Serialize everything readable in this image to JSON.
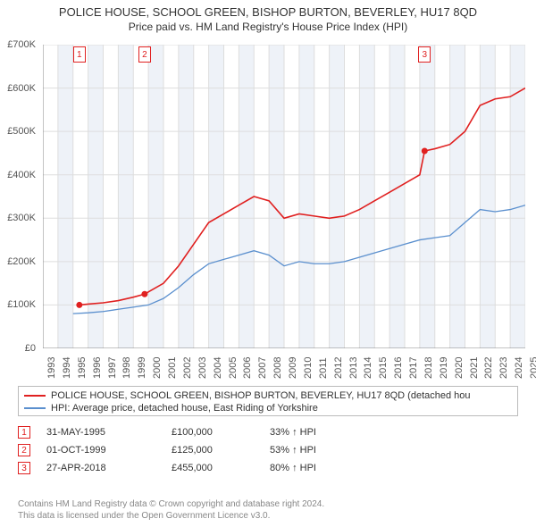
{
  "title": "POLICE HOUSE, SCHOOL GREEN, BISHOP BURTON, BEVERLEY, HU17 8QD",
  "subtitle": "Price paid vs. HM Land Registry's House Price Index (HPI)",
  "chart": {
    "type": "line",
    "background_color": "#ffffff",
    "alt_band_color": "#eef2f8",
    "grid_color": "#dddddd",
    "axis_color": "#888888",
    "ylim": [
      0,
      700000
    ],
    "ytick_step": 100000,
    "ytick_labels": [
      "£0",
      "£100K",
      "£200K",
      "£300K",
      "£400K",
      "£500K",
      "£600K",
      "£700K"
    ],
    "x_years": [
      1993,
      1994,
      1995,
      1996,
      1997,
      1998,
      1999,
      2000,
      2001,
      2002,
      2003,
      2004,
      2005,
      2006,
      2007,
      2008,
      2009,
      2010,
      2011,
      2012,
      2013,
      2014,
      2015,
      2016,
      2017,
      2018,
      2019,
      2020,
      2021,
      2022,
      2023,
      2024,
      2025
    ],
    "series": [
      {
        "name": "price_paid",
        "color": "#e02020",
        "line_width": 1.6,
        "points": [
          [
            1995.42,
            100000
          ],
          [
            1996,
            102000
          ],
          [
            1997,
            105000
          ],
          [
            1998,
            110000
          ],
          [
            1999,
            118000
          ],
          [
            1999.75,
            125000
          ],
          [
            2000,
            130000
          ],
          [
            2001,
            150000
          ],
          [
            2002,
            190000
          ],
          [
            2003,
            240000
          ],
          [
            2004,
            290000
          ],
          [
            2005,
            310000
          ],
          [
            2006,
            330000
          ],
          [
            2007,
            350000
          ],
          [
            2008,
            340000
          ],
          [
            2009,
            300000
          ],
          [
            2010,
            310000
          ],
          [
            2011,
            305000
          ],
          [
            2012,
            300000
          ],
          [
            2013,
            305000
          ],
          [
            2014,
            320000
          ],
          [
            2015,
            340000
          ],
          [
            2016,
            360000
          ],
          [
            2017,
            380000
          ],
          [
            2018,
            400000
          ],
          [
            2018.32,
            455000
          ],
          [
            2019,
            460000
          ],
          [
            2020,
            470000
          ],
          [
            2021,
            500000
          ],
          [
            2022,
            560000
          ],
          [
            2023,
            575000
          ],
          [
            2024,
            580000
          ],
          [
            2025,
            600000
          ]
        ],
        "marker_indices": [
          0,
          5,
          25
        ],
        "marker_fill": "#e02020"
      },
      {
        "name": "hpi",
        "color": "#5a8fce",
        "line_width": 1.3,
        "points": [
          [
            1995,
            80000
          ],
          [
            1996,
            82000
          ],
          [
            1997,
            85000
          ],
          [
            1998,
            90000
          ],
          [
            1999,
            95000
          ],
          [
            2000,
            100000
          ],
          [
            2001,
            115000
          ],
          [
            2002,
            140000
          ],
          [
            2003,
            170000
          ],
          [
            2004,
            195000
          ],
          [
            2005,
            205000
          ],
          [
            2006,
            215000
          ],
          [
            2007,
            225000
          ],
          [
            2008,
            215000
          ],
          [
            2009,
            190000
          ],
          [
            2010,
            200000
          ],
          [
            2011,
            195000
          ],
          [
            2012,
            195000
          ],
          [
            2013,
            200000
          ],
          [
            2014,
            210000
          ],
          [
            2015,
            220000
          ],
          [
            2016,
            230000
          ],
          [
            2017,
            240000
          ],
          [
            2018,
            250000
          ],
          [
            2019,
            255000
          ],
          [
            2020,
            260000
          ],
          [
            2021,
            290000
          ],
          [
            2022,
            320000
          ],
          [
            2023,
            315000
          ],
          [
            2024,
            320000
          ],
          [
            2025,
            330000
          ]
        ]
      }
    ],
    "flags": [
      {
        "n": "1",
        "year": 1995.42,
        "color": "#e02020"
      },
      {
        "n": "2",
        "year": 1999.75,
        "color": "#e02020"
      },
      {
        "n": "3",
        "year": 2018.32,
        "color": "#e02020"
      }
    ]
  },
  "legend": [
    {
      "color": "#e02020",
      "label": "POLICE HOUSE, SCHOOL GREEN, BISHOP BURTON, BEVERLEY, HU17 8QD (detached hou"
    },
    {
      "color": "#5a8fce",
      "label": "HPI: Average price, detached house, East Riding of Yorkshire"
    }
  ],
  "markers": [
    {
      "n": "1",
      "color": "#e02020",
      "date": "31-MAY-1995",
      "price": "£100,000",
      "pct": "33% ↑ HPI"
    },
    {
      "n": "2",
      "color": "#e02020",
      "date": "01-OCT-1999",
      "price": "£125,000",
      "pct": "53% ↑ HPI"
    },
    {
      "n": "3",
      "color": "#e02020",
      "date": "27-APR-2018",
      "price": "£455,000",
      "pct": "80% ↑ HPI"
    }
  ],
  "footnote_line1": "Contains HM Land Registry data © Crown copyright and database right 2024.",
  "footnote_line2": "This data is licensed under the Open Government Licence v3.0."
}
